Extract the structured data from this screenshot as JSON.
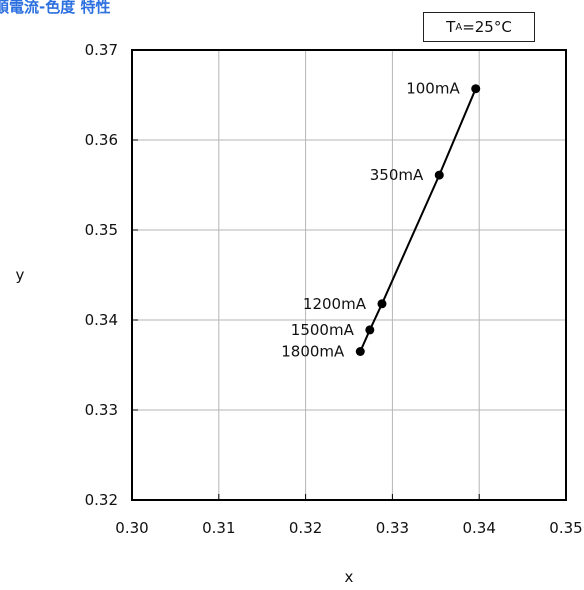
{
  "chart_data": {
    "type": "scatter",
    "title": "順電流-色度 特性",
    "annotation": {
      "main": "T",
      "sub": "A",
      "rest": "=25°C"
    },
    "xlabel": "x",
    "ylabel": "y",
    "xlim": [
      0.3,
      0.35
    ],
    "ylim": [
      0.32,
      0.37
    ],
    "x_ticks": [
      "0.30",
      "0.31",
      "0.32",
      "0.33",
      "0.34",
      "0.35"
    ],
    "y_ticks": [
      "0.32",
      "0.33",
      "0.34",
      "0.35",
      "0.36",
      "0.37"
    ],
    "grid": true,
    "connected": true,
    "points": [
      {
        "label": "100mA",
        "x": 0.3396,
        "y": 0.3657
      },
      {
        "label": "350mA",
        "x": 0.3354,
        "y": 0.3561
      },
      {
        "label": "1200mA",
        "x": 0.3288,
        "y": 0.3418
      },
      {
        "label": "1500mA",
        "x": 0.3274,
        "y": 0.3389
      },
      {
        "label": "1800mA",
        "x": 0.3263,
        "y": 0.3365
      }
    ]
  }
}
